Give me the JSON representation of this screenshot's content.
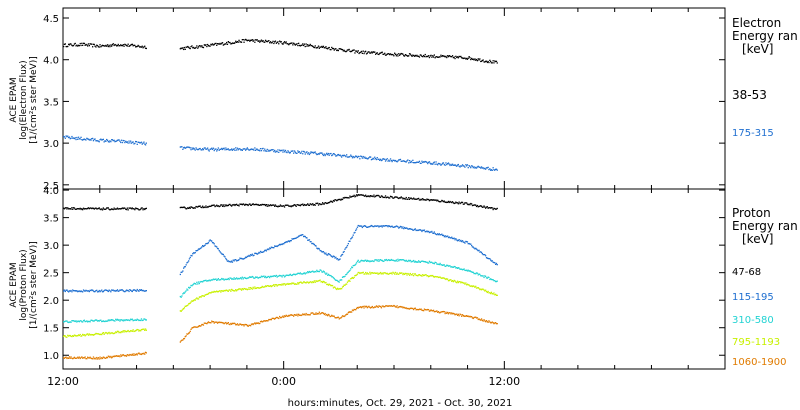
{
  "figure": {
    "xlabel": "hours:minutes, Oct. 29, 2021 - Oct. 30, 2021",
    "x_ticks": [
      "12:00",
      "0:00",
      "12:00"
    ],
    "x_tick_hours": [
      0,
      12,
      24
    ],
    "x_range_hours": [
      0,
      36
    ]
  },
  "colors": {
    "black": "#000000",
    "blue": "#1f6fd0",
    "cyan": "#22d3d3",
    "yellow": "#c8f000",
    "orange": "#e07b00"
  },
  "chart_data": [
    {
      "type": "scatter",
      "panel": "electron",
      "ylabel_lines": [
        "ACE EPAM",
        "log(Electron Flux)",
        "[1/(cm²s ster MeV)]"
      ],
      "ylim": [
        2.45,
        4.62
      ],
      "yticks": [
        2.5,
        3.0,
        3.5,
        4.0,
        4.5
      ],
      "ytick_labels": [
        "2.5",
        "3.0",
        "3.5",
        "4.0",
        "4.5"
      ],
      "legend": {
        "title_lines": [
          "Electron",
          "Energy ran",
          "[keV]"
        ],
        "entries": [
          "38-53",
          "175-315"
        ]
      },
      "data_gap_hours": [
        4.5,
        6.3
      ],
      "series": [
        {
          "name": "38-53",
          "color": "#000000",
          "x": [
            0,
            1,
            2,
            3,
            4.5,
            6.3,
            8,
            10,
            12,
            14,
            16,
            18,
            20,
            22,
            23.6
          ],
          "y": [
            4.18,
            4.19,
            4.17,
            4.19,
            4.16,
            4.14,
            4.18,
            4.24,
            4.21,
            4.16,
            4.1,
            4.07,
            4.05,
            4.03,
            3.97
          ]
        },
        {
          "name": "175-315",
          "color": "#1f6fd0",
          "x": [
            0,
            1,
            2,
            3,
            4.5,
            6.3,
            8,
            10,
            12,
            14,
            16,
            18,
            20,
            22,
            23.6
          ],
          "y": [
            3.08,
            3.06,
            3.04,
            3.03,
            3.0,
            2.95,
            2.93,
            2.94,
            2.91,
            2.88,
            2.84,
            2.8,
            2.77,
            2.73,
            2.69
          ]
        }
      ]
    },
    {
      "type": "scatter",
      "panel": "proton",
      "ylabel_lines": [
        "ACE EPAM",
        "log(Proton Flux)",
        "[1/(cm²s ster MeV)]"
      ],
      "ylim": [
        0.75,
        4.02
      ],
      "yticks": [
        1.0,
        1.5,
        2.0,
        2.5,
        3.0,
        3.5,
        4.0
      ],
      "ytick_labels": [
        "1.0",
        "1.5",
        "2.0",
        "2.5",
        "3.0",
        "3.5",
        "4.0"
      ],
      "legend": {
        "title_lines": [
          "Proton",
          "Energy ran",
          "[keV]"
        ],
        "entries": [
          "47-68",
          "115-195",
          "310-580",
          "795-1193",
          "1060-1900"
        ]
      },
      "data_gap_hours": [
        4.5,
        6.3
      ],
      "series": [
        {
          "name": "47-68",
          "color": "#000000",
          "x": [
            0,
            2,
            4.5,
            6.3,
            8,
            10,
            12,
            14,
            16,
            18,
            20,
            22,
            23.6
          ],
          "y": [
            3.68,
            3.67,
            3.67,
            3.68,
            3.72,
            3.75,
            3.72,
            3.76,
            3.92,
            3.88,
            3.83,
            3.76,
            3.66
          ]
        },
        {
          "name": "115-195",
          "color": "#1f6fd0",
          "x": [
            0,
            2,
            4.5,
            6.3,
            7,
            8,
            9,
            10,
            11,
            12,
            13,
            14,
            15,
            16,
            18,
            20,
            22,
            23.6
          ],
          "y": [
            2.18,
            2.18,
            2.19,
            2.45,
            2.85,
            3.1,
            2.7,
            2.8,
            2.92,
            3.05,
            3.2,
            2.9,
            2.75,
            3.35,
            3.35,
            3.25,
            3.05,
            2.65
          ]
        },
        {
          "name": "310-580",
          "color": "#22d3d3",
          "x": [
            0,
            2,
            4.5,
            6.3,
            7,
            8,
            10,
            12,
            14,
            15,
            16,
            18,
            20,
            22,
            23.6
          ],
          "y": [
            1.62,
            1.64,
            1.66,
            2.05,
            2.3,
            2.38,
            2.42,
            2.45,
            2.55,
            2.35,
            2.72,
            2.74,
            2.7,
            2.55,
            2.35
          ]
        },
        {
          "name": "795-1193",
          "color": "#c8f000",
          "x": [
            0,
            2,
            4.5,
            6.3,
            7,
            8,
            10,
            12,
            14,
            15,
            16,
            18,
            20,
            22,
            23.6
          ],
          "y": [
            1.35,
            1.4,
            1.48,
            1.8,
            2.0,
            2.15,
            2.22,
            2.3,
            2.36,
            2.2,
            2.5,
            2.5,
            2.45,
            2.3,
            2.1
          ]
        },
        {
          "name": "1060-1900",
          "color": "#e07b00",
          "x": [
            0,
            2,
            4.5,
            6.3,
            7,
            8,
            10,
            12,
            14,
            15,
            16,
            18,
            20,
            22,
            23.6
          ],
          "y": [
            0.97,
            0.96,
            1.05,
            1.22,
            1.5,
            1.62,
            1.55,
            1.72,
            1.78,
            1.68,
            1.88,
            1.9,
            1.82,
            1.72,
            1.58
          ]
        }
      ]
    }
  ]
}
